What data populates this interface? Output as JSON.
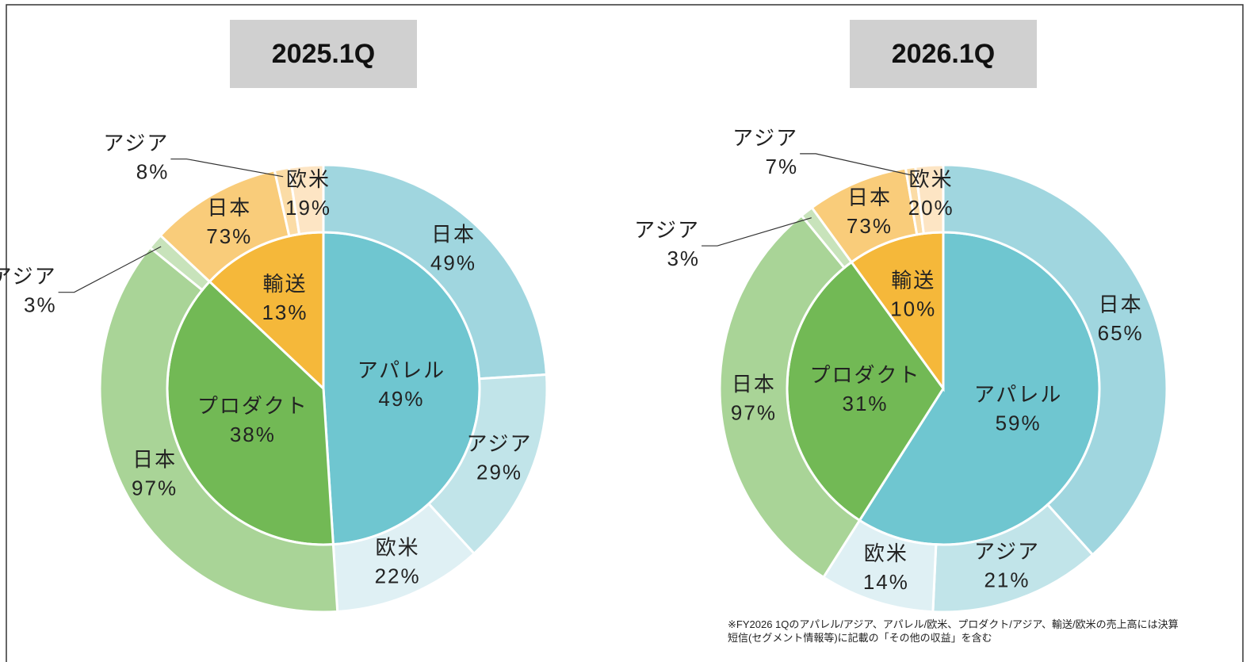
{
  "chart_data": [
    {
      "type": "sunburst",
      "title": "2025.1Q",
      "categories": [
        "アパレル",
        "プロダクト",
        "輸送"
      ],
      "values": [
        49,
        38,
        13
      ],
      "value_labels": [
        "49%",
        "38%",
        "13%"
      ],
      "colors": [
        "#6fc6d0",
        "#72b955",
        "#f5b83a"
      ],
      "children": [
        {
          "categories": [
            "日本",
            "アジア",
            "欧米"
          ],
          "values": [
            49,
            29,
            22
          ],
          "value_labels": [
            "49%",
            "29%",
            "22%"
          ],
          "colors": [
            "#a0d6df",
            "#c1e4e9",
            "#dff0f4"
          ]
        },
        {
          "categories": [
            "日本",
            "アジア"
          ],
          "values": [
            97,
            3
          ],
          "value_labels": [
            "97%",
            "3%"
          ],
          "colors": [
            "#a9d497",
            "#c8e3bb"
          ]
        },
        {
          "categories": [
            "日本",
            "アジア",
            "欧米"
          ],
          "values": [
            73,
            8,
            19
          ],
          "value_labels": [
            "73%",
            "8%",
            "19%"
          ],
          "colors": [
            "#f9cc7a",
            "#fbdca6",
            "#fde5c4"
          ]
        }
      ]
    },
    {
      "type": "sunburst",
      "title": "2026.1Q",
      "categories": [
        "アパレル",
        "プロダクト",
        "輸送"
      ],
      "values": [
        59,
        31,
        10
      ],
      "value_labels": [
        "59%",
        "31%",
        "10%"
      ],
      "colors": [
        "#6fc6d0",
        "#72b955",
        "#f5b83a"
      ],
      "children": [
        {
          "categories": [
            "日本",
            "アジア",
            "欧米"
          ],
          "values": [
            65,
            21,
            14
          ],
          "value_labels": [
            "65%",
            "21%",
            "14%"
          ],
          "colors": [
            "#a0d6df",
            "#c1e4e9",
            "#dff0f4"
          ]
        },
        {
          "categories": [
            "日本",
            "アジア"
          ],
          "values": [
            97,
            3
          ],
          "value_labels": [
            "97%",
            "3%"
          ],
          "colors": [
            "#a9d497",
            "#c8e3bb"
          ]
        },
        {
          "categories": [
            "日本",
            "アジア",
            "欧米"
          ],
          "values": [
            73,
            7,
            20
          ],
          "value_labels": [
            "73%",
            "7%",
            "20%"
          ],
          "colors": [
            "#f9cc7a",
            "#fbdca6",
            "#fde5c4"
          ]
        }
      ]
    }
  ],
  "note": "※FY2026 1Qのアパレル/アジア、アパレル/欧米、プロダクト/アジア、輸送/欧米の売上高には決算短信(セグメント情報等)に記載の「その他の収益」を含む"
}
